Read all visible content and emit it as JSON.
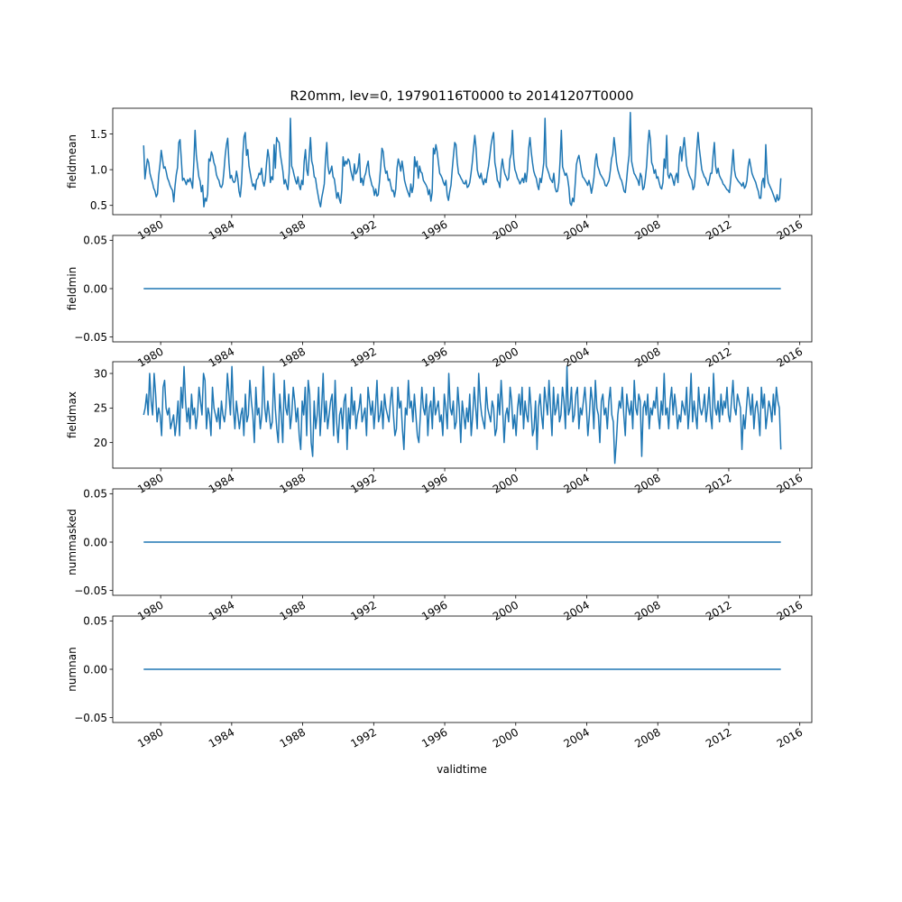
{
  "title": "R20mm, lev=0, 19790116T0000 to 20141207T0000",
  "xlabel": "validtime",
  "line_color": "#1f77b4",
  "chart_data": [
    {
      "type": "line",
      "ylabel": "fieldmean",
      "x_start": "1979-01-16",
      "x_end": "2014-12-07",
      "x_step": "monthly",
      "ylim": [
        0.37,
        1.86
      ],
      "yticks": [
        0.5,
        1.0,
        1.5
      ],
      "ytick_labels": [
        "0.5",
        "1.0",
        "1.5"
      ],
      "xticks": [
        "1980",
        "1984",
        "1988",
        "1992",
        "1996",
        "2000",
        "2004",
        "2008",
        "2012",
        "2016"
      ],
      "values": [
        1.34,
        0.87,
        1.02,
        1.15,
        1.1,
        0.95,
        0.88,
        0.82,
        0.74,
        0.7,
        0.62,
        0.66,
        0.92,
        1.07,
        1.27,
        1.15,
        1.02,
        1.04,
        0.97,
        0.88,
        0.84,
        0.78,
        0.74,
        0.71,
        0.55,
        0.77,
        0.93,
        1.03,
        1.38,
        1.42,
        1.15,
        0.85,
        0.88,
        0.84,
        0.79,
        0.86,
        0.83,
        0.88,
        0.82,
        0.74,
        1.1,
        1.55,
        1.2,
        1.05,
        0.9,
        0.84,
        0.69,
        0.78,
        0.48,
        0.6,
        0.56,
        0.66,
        1.15,
        1.12,
        1.25,
        1.2,
        1.1,
        1.05,
        0.93,
        0.88,
        0.85,
        0.77,
        0.75,
        0.8,
        0.98,
        1.2,
        1.35,
        1.44,
        1.1,
        0.88,
        0.92,
        0.85,
        0.82,
        0.84,
        0.98,
        0.88,
        0.7,
        0.62,
        0.81,
        1.2,
        1.46,
        1.52,
        1.2,
        1.28,
        1.05,
        0.95,
        0.85,
        0.77,
        0.8,
        0.72,
        0.86,
        0.88,
        0.95,
        0.93,
        1.02,
        0.84,
        0.77,
        0.87,
        1.1,
        1.28,
        1.16,
        0.82,
        0.9,
        0.86,
        1.35,
        1.02,
        1.45,
        1.4,
        1.38,
        1.21,
        1.1,
        0.98,
        0.8,
        0.86,
        0.78,
        0.72,
        0.96,
        1.72,
        1.05,
        1.0,
        0.92,
        0.85,
        0.8,
        0.9,
        0.78,
        0.72,
        0.85,
        0.79,
        1.12,
        1.28,
        1.0,
        0.92,
        1.2,
        1.45,
        1.12,
        1.05,
        0.9,
        0.88,
        0.75,
        0.65,
        0.55,
        0.48,
        0.61,
        0.7,
        0.8,
        1.15,
        1.38,
        1.04,
        0.94,
        0.98,
        1.05,
        0.9,
        0.87,
        0.74,
        0.6,
        0.68,
        0.59,
        0.53,
        0.72,
        1.18,
        1.05,
        1.12,
        1.08,
        1.15,
        1.12,
        1.0,
        0.92,
        0.85,
        1.08,
        0.94,
        0.97,
        1.04,
        1.22,
        0.82,
        0.88,
        0.78,
        0.9,
        0.95,
        1.05,
        1.12,
        0.93,
        0.86,
        0.78,
        0.75,
        0.64,
        0.73,
        0.63,
        0.65,
        0.83,
        1.05,
        1.3,
        1.25,
        1.05,
        0.95,
        0.98,
        0.85,
        0.87,
        0.78,
        0.7,
        0.71,
        0.62,
        0.73,
        1.02,
        1.15,
        1.08,
        0.98,
        1.12,
        1.0,
        0.85,
        0.78,
        0.72,
        0.67,
        0.62,
        0.8,
        0.68,
        0.77,
        1.18,
        1.04,
        1.12,
        0.88,
        1.05,
        0.97,
        0.95,
        0.85,
        0.82,
        0.79,
        0.75,
        0.65,
        0.72,
        0.56,
        0.68,
        1.3,
        1.22,
        1.35,
        1.25,
        1.1,
        0.95,
        0.92,
        0.88,
        0.82,
        0.78,
        0.85,
        0.64,
        0.57,
        0.69,
        0.78,
        1.0,
        1.2,
        1.38,
        1.35,
        1.1,
        0.95,
        0.92,
        0.88,
        0.85,
        0.81,
        0.8,
        0.85,
        0.75,
        0.77,
        0.82,
        0.95,
        1.1,
        1.3,
        1.48,
        1.3,
        1.0,
        0.92,
        0.88,
        0.95,
        0.85,
        0.79,
        0.87,
        0.82,
        0.95,
        1.05,
        1.2,
        1.35,
        1.45,
        1.52,
        1.1,
        1.0,
        0.85,
        0.82,
        0.75,
        1.02,
        1.15,
        1.02,
        0.94,
        0.9,
        0.85,
        0.88,
        1.15,
        1.22,
        1.55,
        1.15,
        1.0,
        0.95,
        0.88,
        0.85,
        0.8,
        0.84,
        0.88,
        0.82,
        0.95,
        0.83,
        1.0,
        1.3,
        1.45,
        1.25,
        1.1,
        0.98,
        0.92,
        0.88,
        0.78,
        0.72,
        0.88,
        0.82,
        0.95,
        1.1,
        1.72,
        1.05,
        1.0,
        0.95,
        0.88,
        0.85,
        0.82,
        0.95,
        0.75,
        0.69,
        0.7,
        0.82,
        1.13,
        1.55,
        1.04,
        0.98,
        0.92,
        0.95,
        0.88,
        0.75,
        0.53,
        0.5,
        0.6,
        0.55,
        0.79,
        1.07,
        1.15,
        1.2,
        1.1,
        0.98,
        0.9,
        0.88,
        0.85,
        0.82,
        0.78,
        0.85,
        0.78,
        0.67,
        0.77,
        0.89,
        1.12,
        1.22,
        1.05,
        1.0,
        0.94,
        0.91,
        0.88,
        0.85,
        0.78,
        0.77,
        0.81,
        0.85,
        0.98,
        1.15,
        1.22,
        1.45,
        1.3,
        1.1,
        1.0,
        0.94,
        0.88,
        0.85,
        0.78,
        0.7,
        0.68,
        0.85,
        1.05,
        1.2,
        1.8,
        1.12,
        1.03,
        0.95,
        0.92,
        0.88,
        0.85,
        0.78,
        0.95,
        0.9,
        0.72,
        0.75,
        0.88,
        1.05,
        1.35,
        1.55,
        1.42,
        1.1,
        1.05,
        0.95,
        1.0,
        0.88,
        0.9,
        0.82,
        0.75,
        0.73,
        0.82,
        1.15,
        1.02,
        1.48,
        0.93,
        0.88,
        0.95,
        0.92,
        0.85,
        0.78,
        0.9,
        0.95,
        0.82,
        1.2,
        1.32,
        1.12,
        1.3,
        1.45,
        1.25,
        1.05,
        0.98,
        0.92,
        0.88,
        0.85,
        0.72,
        0.76,
        0.96,
        1.28,
        1.52,
        1.3,
        1.15,
        1.0,
        0.95,
        0.9,
        0.88,
        0.82,
        0.78,
        0.85,
        0.95,
        0.95,
        1.2,
        1.38,
        1.05,
        0.95,
        1.02,
        0.92,
        0.88,
        0.85,
        0.8,
        0.78,
        0.75,
        0.72,
        0.71,
        0.68,
        0.85,
        1.05,
        1.28,
        1.0,
        0.9,
        0.87,
        0.84,
        0.82,
        0.8,
        0.77,
        0.82,
        0.74,
        0.77,
        0.85,
        1.05,
        1.15,
        1.05,
        0.95,
        0.9,
        0.86,
        0.82,
        0.75,
        0.7,
        0.6,
        0.6,
        0.83,
        0.88,
        0.75,
        1.35,
        0.95,
        0.82,
        0.78,
        0.74,
        0.7,
        0.65,
        0.6,
        0.55,
        0.65,
        0.57,
        0.6,
        0.88
      ]
    },
    {
      "type": "line",
      "ylabel": "fieldmin",
      "ylim": [
        -0.055,
        0.055
      ],
      "yticks": [
        -0.05,
        0.0,
        0.05
      ],
      "ytick_labels": [
        "−0.05",
        "0.00",
        "0.05"
      ],
      "xticks": [
        "1980",
        "1984",
        "1988",
        "1992",
        "1996",
        "2000",
        "2004",
        "2008",
        "2012",
        "2016"
      ],
      "constant": 0.0
    },
    {
      "type": "line",
      "ylabel": "fieldmax",
      "ylim": [
        16.3,
        31.7
      ],
      "yticks": [
        20,
        25,
        30
      ],
      "ytick_labels": [
        "20",
        "25",
        "30"
      ],
      "xticks": [
        "1980",
        "1984",
        "1988",
        "1992",
        "1996",
        "2000",
        "2004",
        "2008",
        "2012",
        "2016"
      ],
      "values": [
        24,
        25,
        27,
        24,
        30,
        26,
        24,
        30,
        27,
        23,
        25,
        24,
        21,
        28,
        29,
        25,
        24,
        25,
        22,
        23,
        24,
        21,
        23,
        26,
        21,
        28,
        25,
        31,
        26,
        23,
        25,
        22,
        27,
        24,
        25,
        22,
        24,
        28,
        26,
        24,
        30,
        29,
        22,
        25,
        24,
        21,
        28,
        25,
        24,
        23,
        25,
        22,
        26,
        24,
        23,
        25,
        30,
        27,
        24,
        31,
        25,
        22,
        26,
        24,
        22,
        24,
        25,
        21,
        27,
        23,
        24,
        29,
        26,
        24,
        20,
        28,
        24,
        25,
        22,
        24,
        31,
        25,
        23,
        26,
        24,
        22,
        23,
        30,
        25,
        22,
        20,
        27,
        24,
        20,
        29,
        25,
        24,
        27,
        22,
        24,
        28,
        26,
        23,
        25,
        21,
        19,
        26,
        24,
        28,
        21,
        29,
        27,
        20,
        18,
        26,
        22,
        24,
        28,
        21,
        25,
        30,
        23,
        26,
        22,
        24,
        26,
        27,
        21,
        29,
        23,
        20,
        24,
        25,
        22,
        26,
        27,
        19,
        25,
        22,
        28,
        24,
        26,
        22,
        24,
        25,
        27,
        23,
        24,
        25,
        21,
        28,
        26,
        24,
        26,
        22,
        25,
        29,
        23,
        24,
        26,
        22,
        27,
        25,
        24,
        23,
        26,
        28,
        24,
        21,
        22,
        28,
        25,
        26,
        22,
        19,
        25,
        24,
        29,
        25,
        26,
        23,
        27,
        24,
        21,
        20,
        24,
        28,
        25,
        24,
        27,
        21,
        25,
        26,
        22,
        28,
        24,
        25,
        26,
        23,
        24,
        21,
        27,
        25,
        22,
        30,
        25,
        24,
        26,
        22,
        23,
        28,
        25,
        20,
        26,
        24,
        22,
        25,
        23,
        27,
        21,
        24,
        28,
        25,
        22,
        30,
        26,
        24,
        23,
        22,
        28,
        25,
        24,
        23,
        26,
        25,
        21,
        22,
        27,
        24,
        29,
        25,
        20,
        24,
        25,
        23,
        28,
        26,
        22,
        24,
        21,
        25,
        27,
        24,
        28,
        22,
        26,
        24,
        23,
        28,
        25,
        21,
        22,
        26,
        19,
        25,
        27,
        24,
        22,
        28,
        26,
        24,
        29,
        25,
        21,
        28,
        24,
        25,
        27,
        23,
        24,
        28,
        26,
        22,
        31,
        24,
        25,
        28,
        23,
        24,
        27,
        28,
        22,
        25,
        24,
        26,
        28,
        25,
        21,
        24,
        28,
        26,
        22,
        29,
        25,
        24,
        20,
        26,
        27,
        24,
        25,
        22,
        26,
        28,
        24,
        23,
        17,
        20,
        24,
        26,
        25,
        28,
        24,
        21,
        27,
        25,
        24,
        26,
        22,
        29,
        25,
        24,
        27,
        26,
        18,
        25,
        26,
        24,
        27,
        22,
        25,
        24,
        26,
        25,
        28,
        24,
        22,
        26,
        24,
        30,
        24,
        25,
        22,
        26,
        28,
        24,
        27,
        25,
        22,
        24,
        23,
        26,
        25,
        24,
        28,
        22,
        25,
        30,
        23,
        26,
        24,
        22,
        28,
        25,
        24,
        25,
        27,
        23,
        25,
        28,
        24,
        22,
        30,
        25,
        24,
        26,
        23,
        27,
        24,
        26,
        25,
        28,
        24,
        23,
        26,
        29,
        25,
        24,
        27,
        26,
        25,
        19,
        24,
        22,
        25,
        28,
        26,
        24,
        27,
        22,
        25,
        26,
        24,
        21,
        28,
        25,
        27,
        22,
        24,
        26,
        25,
        23,
        27,
        24,
        28,
        26,
        25,
        19
      ]
    },
    {
      "type": "line",
      "ylabel": "nummasked",
      "ylim": [
        -0.055,
        0.055
      ],
      "yticks": [
        -0.05,
        0.0,
        0.05
      ],
      "ytick_labels": [
        "−0.05",
        "0.00",
        "0.05"
      ],
      "xticks": [
        "1980",
        "1984",
        "1988",
        "1992",
        "1996",
        "2000",
        "2004",
        "2008",
        "2012",
        "2016"
      ],
      "constant": 0.0
    },
    {
      "type": "line",
      "ylabel": "numnan",
      "ylim": [
        -0.055,
        0.055
      ],
      "yticks": [
        -0.05,
        0.0,
        0.05
      ],
      "ytick_labels": [
        "−0.05",
        "0.00",
        "0.05"
      ],
      "xticks": [
        "1980",
        "1984",
        "1988",
        "1992",
        "1996",
        "2000",
        "2004",
        "2008",
        "2012",
        "2016"
      ],
      "constant": 0.0
    }
  ]
}
